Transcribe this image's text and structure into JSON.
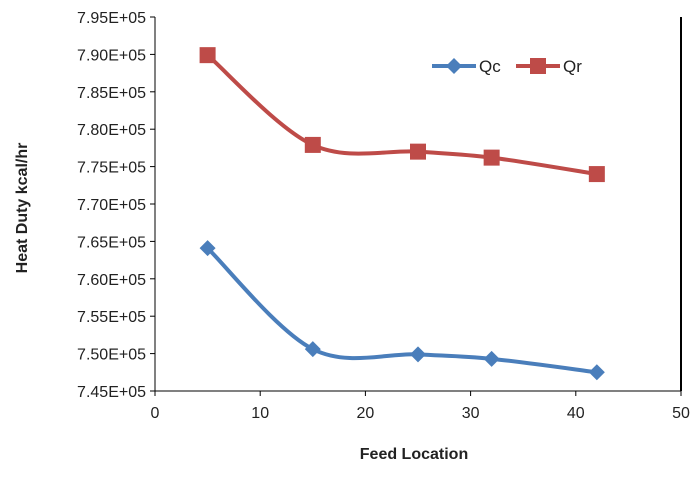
{
  "chart_data": {
    "type": "line",
    "title": "",
    "xlabel": "Feed Location",
    "ylabel": "Heat Duty kcal/hr",
    "xlim": [
      0,
      50
    ],
    "ylim": [
      745000,
      795000
    ],
    "x_ticks": [
      0,
      10,
      20,
      30,
      40,
      50
    ],
    "x_tick_labels": [
      "0",
      "10",
      "20",
      "30",
      "40",
      "50"
    ],
    "y_ticks": [
      745000,
      750000,
      755000,
      760000,
      765000,
      770000,
      775000,
      780000,
      785000,
      790000,
      795000
    ],
    "y_tick_labels": [
      "7.45E+05",
      "7.50E+05",
      "7.55E+05",
      "7.60E+05",
      "7.65E+05",
      "7.70E+05",
      "7.75E+05",
      "7.80E+05",
      "7.85E+05",
      "7.90E+05",
      "7.95E+05"
    ],
    "grid": false,
    "smooth": true,
    "legend_position": "top-right",
    "series": [
      {
        "name": "Qc",
        "color": "#4a7ebb",
        "marker": "diamond",
        "x": [
          5,
          15,
          25,
          32,
          42
        ],
        "y": [
          764100,
          750600,
          749900,
          749300,
          747500
        ]
      },
      {
        "name": "Qr",
        "color": "#be4b48",
        "marker": "square",
        "x": [
          5,
          15,
          25,
          32,
          42
        ],
        "y": [
          789900,
          777900,
          777000,
          776200,
          774000
        ]
      }
    ]
  }
}
